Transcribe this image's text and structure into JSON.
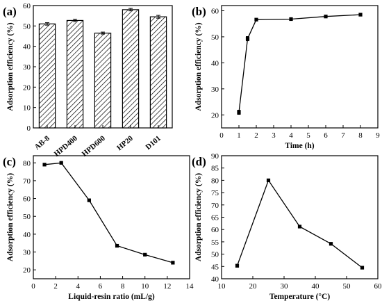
{
  "chart_data": [
    {
      "panel": "(a)",
      "type": "bar",
      "categories": [
        "AB-8",
        "HPD400",
        "HPD600",
        "HP20",
        "D101"
      ],
      "values": [
        51,
        52.7,
        46.5,
        58,
        54.5
      ],
      "errors": [
        0.6,
        0.6,
        0.5,
        0.6,
        0.7
      ],
      "xlabel": "",
      "ylabel": "Adsorption efficiency (%)",
      "ylim": [
        0,
        60
      ],
      "yticks": [
        0,
        10,
        20,
        30,
        40,
        50,
        60
      ]
    },
    {
      "panel": "(b)",
      "type": "line",
      "x": [
        1,
        1.5,
        2,
        4,
        6,
        8
      ],
      "y": [
        21,
        49.3,
        56.6,
        56.8,
        57.8,
        58.5
      ],
      "errors": [
        0.8,
        0.8,
        0.4,
        0.4,
        0.4,
        0.4
      ],
      "xlabel": "Time (h)",
      "ylabel": "Adsorption efficiency (%)",
      "xlim": [
        0,
        9
      ],
      "ylim": [
        15,
        62
      ],
      "xticks": [
        0,
        1,
        2,
        3,
        4,
        5,
        6,
        7,
        8,
        9
      ],
      "yticks": [
        20,
        30,
        40,
        50,
        60
      ]
    },
    {
      "panel": "(c)",
      "type": "line",
      "x": [
        1,
        2.5,
        5,
        7.5,
        10,
        12.5
      ],
      "y": [
        79,
        80,
        59,
        33.5,
        28.5,
        24
      ],
      "errors": [
        0.4,
        0.4,
        0.4,
        0.4,
        0.4,
        0.8
      ],
      "xlabel": "Liquid-resin ratio (mL/g)",
      "ylabel": "Adsorption efficiency (%)",
      "xlim": [
        0,
        14
      ],
      "ylim": [
        15,
        84
      ],
      "xticks": [
        0,
        2,
        4,
        6,
        8,
        10,
        12,
        14
      ],
      "yticks": [
        20,
        30,
        40,
        50,
        60,
        70,
        80
      ]
    },
    {
      "panel": "(d)",
      "type": "line",
      "x": [
        15,
        25,
        35,
        45,
        55
      ],
      "y": [
        45.3,
        80,
        61.2,
        54.2,
        44.5
      ],
      "errors": [
        0.6,
        0.3,
        0.5,
        0.5,
        0.3
      ],
      "xlabel": "Temperature (°C)",
      "ylabel": "Adsorption efficiency (%)",
      "xlim": [
        10,
        60
      ],
      "ylim": [
        40,
        90
      ],
      "xticks": [
        10,
        20,
        30,
        40,
        50,
        60
      ],
      "yticks": [
        40,
        45,
        50,
        55,
        60,
        65,
        70,
        75,
        80,
        85,
        90
      ]
    }
  ]
}
